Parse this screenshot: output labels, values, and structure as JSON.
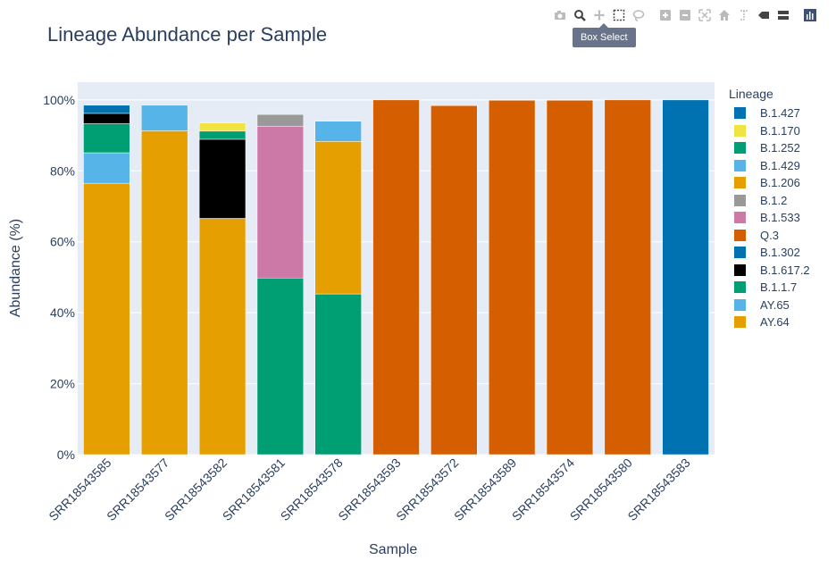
{
  "modebar": {
    "buttons": [
      "camera-icon",
      "zoom-icon",
      "pan-icon",
      "box-select-icon",
      "lasso-icon",
      "zoom-in-icon",
      "zoom-out-icon",
      "autoscale-icon",
      "home-icon",
      "spike-lines-icon",
      "hover-closest-icon",
      "hover-compare-icon",
      "plotly-logo-icon"
    ],
    "tooltip": "Box Select"
  },
  "colors": {
    "B.1.427": "#0072b2",
    "B.1.170": "#f0e442",
    "B.1.252": "#009e73",
    "B.1.429": "#56b4e9",
    "B.1.206": "#e69f00",
    "B.1.2": "#999999",
    "B.1.533": "#cc79a7",
    "Q.3": "#d55e00",
    "B.1.302": "#0072b2",
    "B.1.617.2": "#000000",
    "B.1.1.7": "#009e73",
    "AY.65": "#56b4e9",
    "AY.64": "#e69f00"
  },
  "chart_data": {
    "type": "bar",
    "barmode": "stack",
    "title": "Lineage Abundance per Sample",
    "xlabel": "Sample",
    "ylabel": "Abundance (%)",
    "legend_title": "Lineage",
    "legend_position": "right",
    "ylim": [
      0,
      105
    ],
    "yticks": [
      "0%",
      "20%",
      "40%",
      "60%",
      "80%",
      "100%"
    ],
    "categories": [
      "SRR18543585",
      "SRR18543577",
      "SRR18543582",
      "SRR18543581",
      "SRR18543578",
      "SRR18543593",
      "SRR18543572",
      "SRR18543589",
      "SRR18543574",
      "SRR18543580",
      "SRR18543583"
    ],
    "series": [
      {
        "name": "AY.64",
        "values": [
          76.5,
          91.3,
          66.6,
          0,
          0,
          0,
          0,
          0,
          0,
          0,
          0
        ]
      },
      {
        "name": "AY.65",
        "values": [
          8.6,
          7.2,
          0,
          0,
          0,
          0,
          0,
          0,
          0,
          0,
          0
        ]
      },
      {
        "name": "B.1.1.7",
        "values": [
          8.2,
          0,
          0,
          49.8,
          45.3,
          0,
          0,
          0,
          0,
          0,
          0
        ]
      },
      {
        "name": "B.1.617.2",
        "values": [
          2.9,
          0,
          22.3,
          0,
          0,
          0,
          0,
          0,
          0,
          0,
          0
        ]
      },
      {
        "name": "B.1.302",
        "values": [
          2.3,
          0,
          0,
          0,
          0,
          0,
          0,
          0,
          0,
          0,
          100
        ]
      },
      {
        "name": "Q.3",
        "values": [
          0,
          0,
          0,
          0,
          0,
          100,
          98.4,
          99.9,
          99.9,
          100,
          0
        ]
      },
      {
        "name": "B.1.533",
        "values": [
          0,
          0,
          0,
          42.7,
          0,
          0,
          0,
          0,
          0,
          0,
          0
        ]
      },
      {
        "name": "B.1.2",
        "values": [
          0,
          0,
          0,
          3.4,
          0,
          0,
          0,
          0,
          0,
          0,
          0
        ]
      },
      {
        "name": "B.1.206",
        "values": [
          0,
          0,
          0,
          0,
          43.0,
          0,
          0,
          0,
          0,
          0,
          0
        ]
      },
      {
        "name": "B.1.429",
        "values": [
          0,
          0,
          0,
          0,
          5.7,
          0,
          0,
          0,
          0,
          0,
          0
        ]
      },
      {
        "name": "B.1.252",
        "values": [
          0,
          0,
          2.3,
          0,
          0,
          0,
          0,
          0,
          0,
          0,
          0
        ]
      },
      {
        "name": "B.1.170",
        "values": [
          0,
          0,
          2.3,
          0,
          0,
          0,
          0,
          0,
          0,
          0,
          0
        ]
      },
      {
        "name": "B.1.427",
        "values": [
          0,
          0,
          0,
          0,
          0,
          0,
          0,
          0,
          0,
          0,
          0
        ]
      }
    ],
    "legend_order": [
      "B.1.427",
      "B.1.170",
      "B.1.252",
      "B.1.429",
      "B.1.206",
      "B.1.2",
      "B.1.533",
      "Q.3",
      "B.1.302",
      "B.1.617.2",
      "B.1.1.7",
      "AY.65",
      "AY.64"
    ]
  }
}
